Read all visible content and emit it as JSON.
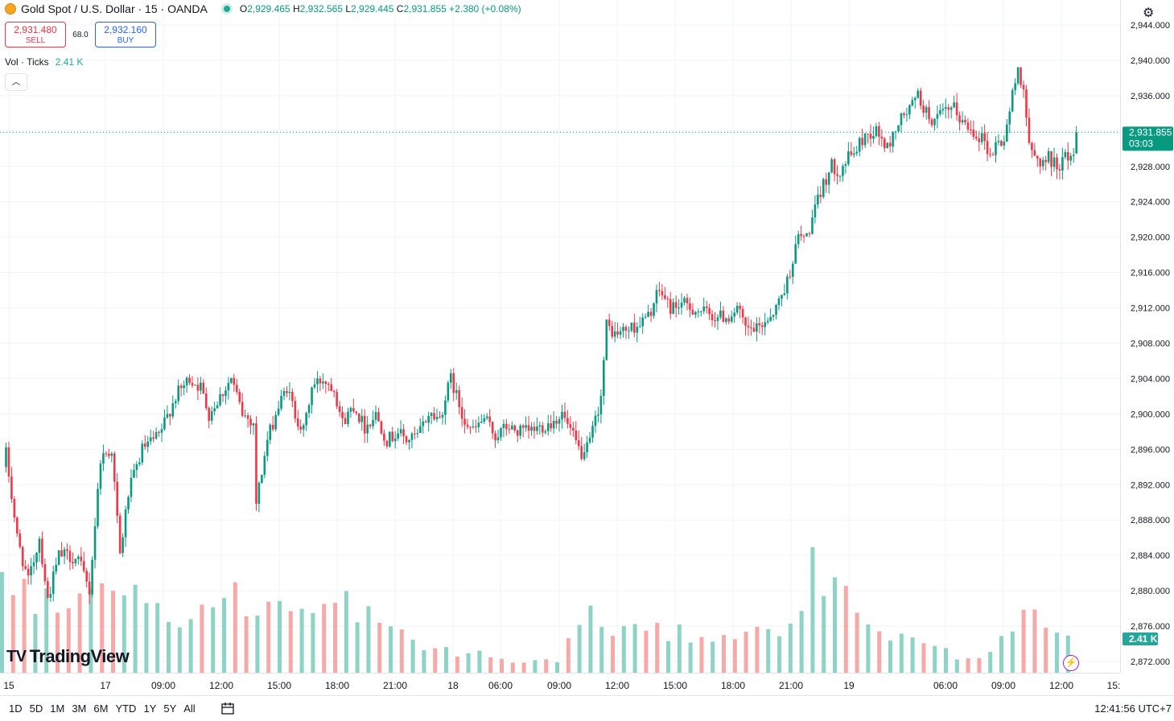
{
  "legend": {
    "symbol": "Gold Spot / U.S. Dollar · 15 · OANDA",
    "symbol_icon": "gold-coin-icon",
    "o_label": "O",
    "o_value": "2,929.465",
    "h_label": "H",
    "h_value": "2,932.565",
    "l_label": "L",
    "l_value": "2,929.445",
    "c_label": "C",
    "c_value": "2,931.855",
    "change": "+2.380 (+0.08%)"
  },
  "trade": {
    "sell_price": "2,931.480",
    "sell_label": "SELL",
    "spread": "68.0",
    "buy_price": "2,932.160",
    "buy_label": "BUY"
  },
  "volume": {
    "label": "Vol · Ticks",
    "value": "2.41 K",
    "badge": "2.41 K"
  },
  "watermark": "TradingView",
  "price_badge": {
    "price": "2,931.855",
    "countdown": "03:03"
  },
  "colors": {
    "up": "#089981",
    "down": "#f23645",
    "vol_up": "#8fd3c7",
    "vol_down": "#f7a9a7"
  },
  "bottom": {
    "ranges": [
      "1D",
      "5D",
      "1M",
      "3M",
      "6M",
      "YTD",
      "1Y",
      "5Y",
      "All"
    ],
    "time": "12:41:56 UTC+7"
  },
  "chart_data": {
    "type": "candlestick",
    "interval_minutes": 15,
    "y_ticks": [
      "2,944.000",
      "2,940.000",
      "2,936.000",
      "2,932.000",
      "2,928.000",
      "2,924.000",
      "2,920.000",
      "2,916.000",
      "2,912.000",
      "2,908.000",
      "2,904.000",
      "2,900.000",
      "2,896.000",
      "2,892.000",
      "2,888.000",
      "2,884.000",
      "2,880.000",
      "2,876.000",
      "2,872.000"
    ],
    "ylim": [
      2871.6,
      2946.9
    ],
    "x_ticks": [
      "15",
      "17",
      "09:00",
      "12:00",
      "15:00",
      "18:00",
      "21:00",
      "18",
      "06:00",
      "09:00",
      "12:00",
      "15:00",
      "18:00",
      "21:00",
      "19",
      "06:00",
      "09:00",
      "12:00",
      "15:"
    ],
    "last_price": 2931.855,
    "anchors": [
      [
        0,
        2895.5
      ],
      [
        4,
        2886
      ],
      [
        8,
        2881
      ],
      [
        12,
        2886
      ],
      [
        15,
        2879
      ],
      [
        19,
        2884
      ],
      [
        22,
        2884
      ],
      [
        26,
        2883.5
      ],
      [
        30,
        2880
      ],
      [
        34,
        2895
      ],
      [
        38,
        2896
      ],
      [
        41,
        2884
      ],
      [
        44,
        2891
      ],
      [
        49,
        2896
      ],
      [
        55,
        2897.5
      ],
      [
        61,
        2902
      ],
      [
        66,
        2904
      ],
      [
        70,
        2903
      ],
      [
        73,
        2900
      ],
      [
        77,
        2902
      ],
      [
        81,
        2904
      ],
      [
        82,
        2903
      ],
      [
        85,
        2900
      ],
      [
        89,
        2899
      ],
      [
        90,
        2890
      ],
      [
        94,
        2897
      ],
      [
        97,
        2900
      ],
      [
        101,
        2903
      ],
      [
        104,
        2900
      ],
      [
        107,
        2898
      ],
      [
        110,
        2903
      ],
      [
        114,
        2904
      ],
      [
        118,
        2903
      ],
      [
        121,
        2899
      ],
      [
        125,
        2901
      ],
      [
        129,
        2898.5
      ],
      [
        133,
        2900
      ],
      [
        137,
        2897
      ],
      [
        141,
        2898
      ],
      [
        144,
        2897
      ],
      [
        148,
        2897.5
      ],
      [
        152,
        2900
      ],
      [
        156,
        2899.5
      ],
      [
        160,
        2904
      ],
      [
        164,
        2900
      ],
      [
        168,
        2898
      ],
      [
        172,
        2899.5
      ],
      [
        176,
        2897.5
      ],
      [
        180,
        2898.5
      ],
      [
        184,
        2898
      ],
      [
        188,
        2898
      ],
      [
        192,
        2898.5
      ],
      [
        196,
        2899
      ],
      [
        200,
        2900
      ],
      [
        203,
        2898
      ],
      [
        206,
        2896
      ],
      [
        208,
        2895
      ],
      [
        211,
        2898
      ],
      [
        214,
        2902
      ],
      [
        216,
        2910
      ],
      [
        219,
        2909
      ],
      [
        223,
        2909.5
      ],
      [
        227,
        2910
      ],
      [
        231,
        2911
      ],
      [
        235,
        2914
      ],
      [
        239,
        2912
      ],
      [
        243,
        2912.5
      ],
      [
        246,
        2912
      ],
      [
        251,
        2911.5
      ],
      [
        255,
        2911
      ],
      [
        260,
        2911
      ],
      [
        263,
        2912
      ],
      [
        266,
        2909.5
      ],
      [
        270,
        2909.5
      ],
      [
        273,
        2910.5
      ],
      [
        277,
        2912
      ],
      [
        281,
        2915
      ],
      [
        285,
        2920
      ],
      [
        288,
        2920
      ],
      [
        291,
        2923
      ],
      [
        294,
        2926
      ],
      [
        297,
        2928
      ],
      [
        300,
        2927.5
      ],
      [
        303,
        2929
      ],
      [
        306,
        2930
      ],
      [
        309,
        2931.5
      ],
      [
        313,
        2932
      ],
      [
        317,
        2930
      ],
      [
        321,
        2933
      ],
      [
        325,
        2934.5
      ],
      [
        328,
        2936
      ],
      [
        331,
        2934
      ],
      [
        334,
        2933
      ],
      [
        337,
        2934
      ],
      [
        341,
        2934.5
      ],
      [
        344,
        2933
      ],
      [
        348,
        2932
      ],
      [
        352,
        2931
      ],
      [
        354,
        2929
      ],
      [
        356,
        2930.5
      ],
      [
        359,
        2931
      ],
      [
        362,
        2936
      ],
      [
        364,
        2939
      ],
      [
        366,
        2937
      ],
      [
        368,
        2930
      ],
      [
        370,
        2929
      ],
      [
        373,
        2928.5
      ],
      [
        375,
        2929
      ],
      [
        378,
        2928
      ],
      [
        381,
        2929
      ],
      [
        384,
        2929.5
      ],
      [
        385,
        2931.855
      ]
    ]
  }
}
